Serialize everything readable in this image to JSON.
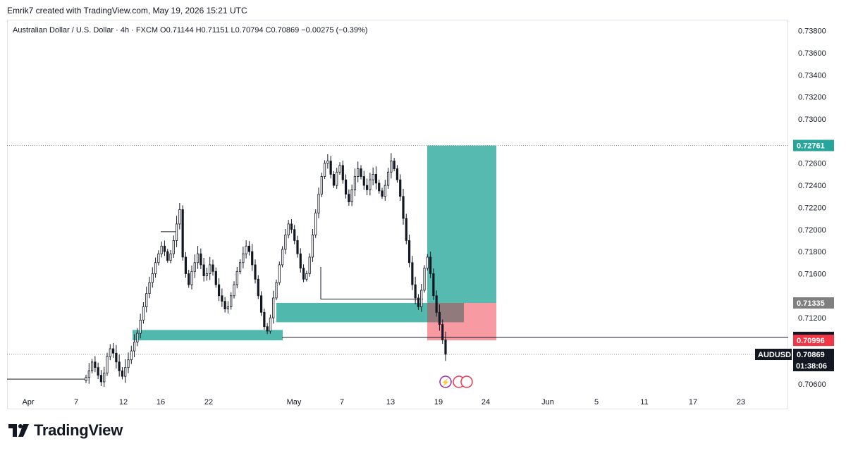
{
  "header": {
    "credit": "Emrik7 created with TradingView.com, May 19, 2026 15:21 UTC"
  },
  "symbol_line": "Australian Dollar / U.S. Dollar · 4h · FXCM  O0.71144  H0.71151  L0.70794  C0.70869  −0.00275 (−0.39%)",
  "brand": {
    "name": "TradingView"
  },
  "chart_data": {
    "type": "candlestick",
    "symbol": "AUDUSD",
    "timeframe": "4h",
    "y_ticks": [
      "0.73800",
      "0.73600",
      "0.73400",
      "0.73200",
      "0.73000",
      "0.72600",
      "0.72400",
      "0.72200",
      "0.72000",
      "0.71800",
      "0.71600",
      "0.71200",
      "0.70600"
    ],
    "x_ticks": [
      "Apr",
      "7",
      "12",
      "16",
      "22",
      "May",
      "7",
      "13",
      "19",
      "24",
      "Jun",
      "5",
      "11",
      "17",
      "23"
    ],
    "ylim": [
      0.7055,
      0.739
    ],
    "price_tags": [
      {
        "label": "0.72761",
        "value": 0.72761,
        "color": "#26a69a"
      },
      {
        "label": "0.71335",
        "value": 0.71335,
        "color": "#7f7f7f"
      },
      {
        "label": "0.71023",
        "value": 0.71023,
        "color": "#131722"
      },
      {
        "label": "0.70996",
        "value": 0.70996,
        "color": "#f23645"
      },
      {
        "label": "0.70869",
        "value": 0.70869,
        "color": "#131722",
        "symbol": "AUDUSD",
        "countdown": "01:38:06"
      }
    ],
    "position": {
      "type": "long",
      "entry": 0.71335,
      "target": 0.72761,
      "stop": 0.70996,
      "profit_color": "#26a69a",
      "loss_color": "#f23645"
    },
    "zones": [
      {
        "low": 0.70996,
        "high": 0.7109,
        "color": "#26a69a"
      },
      {
        "low": 0.7116,
        "high": 0.71335,
        "color": "#26a69a"
      }
    ],
    "levels": [
      {
        "value": 0.71023
      },
      {
        "value": 0.71335
      },
      {
        "value": 0.70645
      }
    ],
    "closes": [
      0.7066,
      0.7072,
      0.708,
      0.7075,
      0.7068,
      0.7062,
      0.707,
      0.7085,
      0.7092,
      0.7088,
      0.708,
      0.7072,
      0.7067,
      0.7075,
      0.7082,
      0.709,
      0.7098,
      0.7106,
      0.7118,
      0.713,
      0.7142,
      0.7152,
      0.716,
      0.717,
      0.7178,
      0.7185,
      0.718,
      0.7172,
      0.7178,
      0.719,
      0.7205,
      0.7218,
      0.7175,
      0.716,
      0.715,
      0.7162,
      0.717,
      0.7178,
      0.7168,
      0.7158,
      0.716,
      0.7168,
      0.7162,
      0.715,
      0.714,
      0.7135,
      0.7128,
      0.713,
      0.714,
      0.715,
      0.7162,
      0.717,
      0.7178,
      0.7185,
      0.718,
      0.7168,
      0.7155,
      0.714,
      0.7125,
      0.7112,
      0.7108,
      0.712,
      0.7138,
      0.7152,
      0.7168,
      0.7182,
      0.7195,
      0.7205,
      0.72,
      0.719,
      0.7178,
      0.7165,
      0.7155,
      0.716,
      0.7175,
      0.7195,
      0.7215,
      0.7232,
      0.7248,
      0.726,
      0.7262,
      0.725,
      0.724,
      0.7252,
      0.7258,
      0.7245,
      0.7232,
      0.7225,
      0.7236,
      0.7248,
      0.7255,
      0.7248,
      0.724,
      0.7236,
      0.7245,
      0.725,
      0.7242,
      0.7235,
      0.723,
      0.724,
      0.7252,
      0.7262,
      0.7255,
      0.7245,
      0.723,
      0.721,
      0.719,
      0.717,
      0.715,
      0.7138,
      0.713,
      0.7145,
      0.7165,
      0.7175,
      0.716,
      0.714,
      0.7125,
      0.7114,
      0.71,
      0.7087
    ]
  }
}
